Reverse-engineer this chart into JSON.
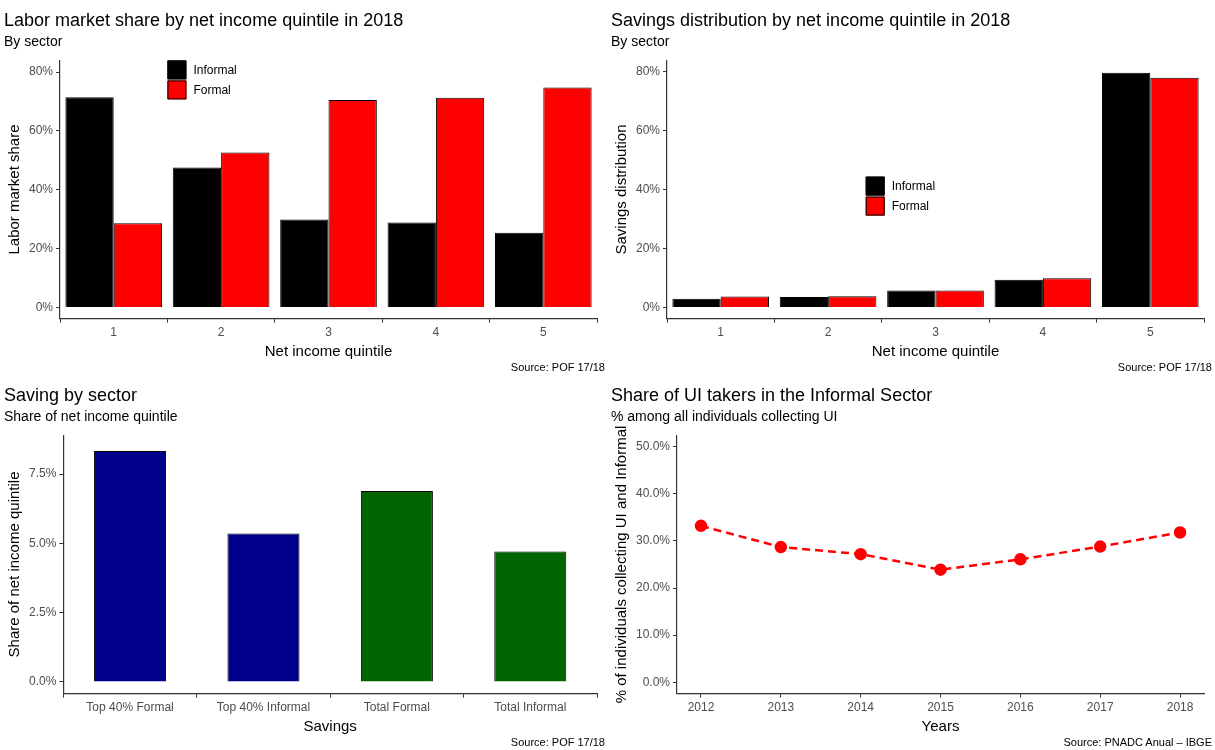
{
  "chart_data": [
    {
      "type": "bar",
      "title": "Labor market share by net income quintile in 2018",
      "subtitle": "By sector",
      "xlabel": "Net income quintile",
      "ylabel": "Labor market share",
      "categories": [
        "1",
        "2",
        "3",
        "4",
        "5"
      ],
      "series": [
        {
          "name": "Informal",
          "color": "#000000",
          "values": [
            71.5,
            47.6,
            29.9,
            28.9,
            25.4
          ]
        },
        {
          "name": "Formal",
          "color": "#ff0000",
          "values": [
            28.6,
            52.7,
            70.5,
            71.3,
            74.8
          ]
        }
      ],
      "ylim": [
        -3.8,
        84
      ],
      "yticks": [
        {
          "value": 0,
          "label": "0%"
        },
        {
          "value": 20,
          "label": "20%"
        },
        {
          "value": 40,
          "label": "40%"
        },
        {
          "value": 60,
          "label": "60%"
        },
        {
          "value": 80,
          "label": "80%"
        }
      ],
      "legend": "top",
      "annotations": [
        "Source: POF 17/18"
      ]
    },
    {
      "type": "bar",
      "title": "Savings distribution by net income quintile in 2018",
      "subtitle": "By sector",
      "xlabel": "Net income quintile",
      "ylabel": "Savings distribution",
      "categories": [
        "1",
        "2",
        "3",
        "4",
        "5"
      ],
      "series": [
        {
          "name": "Informal",
          "color": "#000000",
          "values": [
            2.9,
            3.5,
            5.7,
            9.4,
            79.5
          ]
        },
        {
          "name": "Formal",
          "color": "#ff0000",
          "values": [
            3.7,
            3.8,
            5.7,
            9.9,
            77.8
          ]
        }
      ],
      "ylim": [
        -3.8,
        83.7
      ],
      "yticks": [
        {
          "value": 0,
          "label": "0%"
        },
        {
          "value": 20,
          "label": "20%"
        },
        {
          "value": 40,
          "label": "40%"
        },
        {
          "value": 60,
          "label": "60%"
        },
        {
          "value": 80,
          "label": "80%"
        }
      ],
      "legend": "center",
      "annotations": [
        "Source: POF 17/18"
      ]
    },
    {
      "type": "bar",
      "title": "Saving by sector",
      "subtitle": "Share of net income quintile",
      "xlabel": "Savings",
      "ylabel": "Share of net income quintile",
      "categories": [
        "Top 40% Formal",
        "Top 40% Informal",
        "Total Formal",
        "Total Informal"
      ],
      "values": [
        8.34,
        5.36,
        6.89,
        4.71
      ],
      "colors": [
        "#00008b",
        "#00008b",
        "#006400",
        "#006400"
      ],
      "ylim": [
        -0.42,
        8.9
      ],
      "yticks": [
        {
          "value": 0,
          "label": "0.0%"
        },
        {
          "value": 2.5,
          "label": "2.5%"
        },
        {
          "value": 5,
          "label": "5.0%"
        },
        {
          "value": 7.5,
          "label": "7.5%"
        }
      ],
      "annotations": [
        "Source: POF 17/18"
      ]
    },
    {
      "type": "line",
      "title": "Share of UI takers in the Informal Sector",
      "subtitle": "% among all individuals collecting UI",
      "xlabel": "Years",
      "ylabel": "% of individuals collecting UI and Informal",
      "x": [
        2012,
        2013,
        2014,
        2015,
        2016,
        2017,
        2018
      ],
      "series": [
        {
          "color": "#ff0000",
          "values": [
            33.2,
            28.7,
            27.2,
            23.9,
            26.1,
            28.8,
            31.8
          ]
        }
      ],
      "xlim": [
        2011.7,
        2018.3
      ],
      "xticks": [
        2012,
        2013,
        2014,
        2015,
        2016,
        2017,
        2018
      ],
      "ylim": [
        -2.4,
        52.4
      ],
      "yticks": [
        {
          "value": 0,
          "label": "0.0%"
        },
        {
          "value": 10,
          "label": "10.0%"
        },
        {
          "value": 20,
          "label": "20.0%"
        },
        {
          "value": 30,
          "label": "30.0%"
        },
        {
          "value": 40,
          "label": "40.0%"
        },
        {
          "value": 50,
          "label": "50.0%"
        }
      ],
      "marker": "circle",
      "line_style": "dashed",
      "annotations": [
        "Source: PNADC Anual – IBGE"
      ]
    }
  ]
}
